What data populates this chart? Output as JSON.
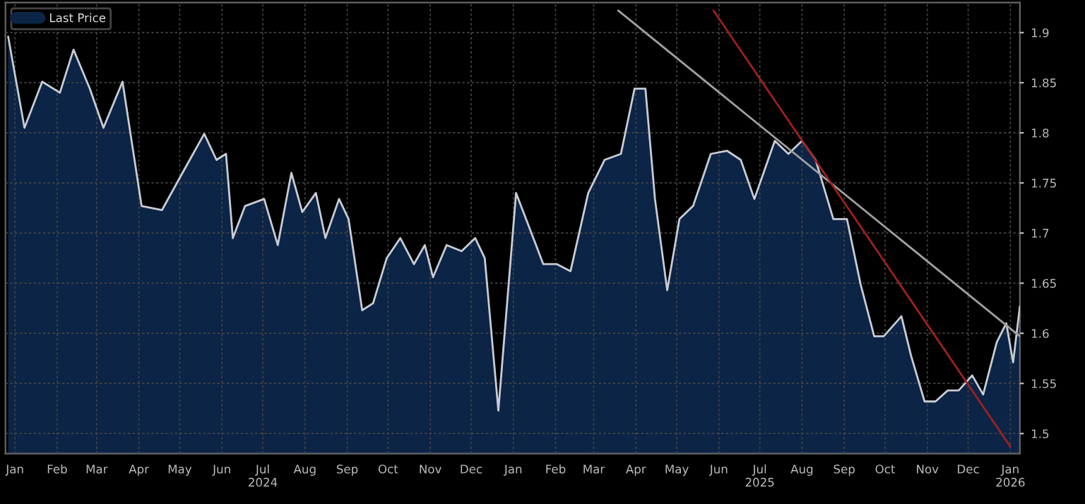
{
  "chart_data": {
    "type": "area",
    "legend": "top left",
    "grid": true,
    "xlim": [
      "2023-12-25",
      "2026-01-08"
    ],
    "ylim": [
      1.48,
      1.93
    ],
    "yticks": [
      1.5,
      1.55,
      1.6,
      1.65,
      1.7,
      1.75,
      1.8,
      1.85,
      1.9
    ],
    "xticks": [
      {
        "value": "2024-01-01",
        "label": "Jan"
      },
      {
        "value": "2024-02-01",
        "label": "Feb"
      },
      {
        "value": "2024-03-01",
        "label": "Mar"
      },
      {
        "value": "2024-04-01",
        "label": "Apr"
      },
      {
        "value": "2024-05-01",
        "label": "May"
      },
      {
        "value": "2024-06-01",
        "label": "Jun"
      },
      {
        "value": "2024-07-01",
        "label": "Jul\n2024"
      },
      {
        "value": "2024-08-01",
        "label": "Aug"
      },
      {
        "value": "2024-09-01",
        "label": "Sep"
      },
      {
        "value": "2024-10-01",
        "label": "Oct"
      },
      {
        "value": "2024-11-01",
        "label": "Nov"
      },
      {
        "value": "2024-12-01",
        "label": "Dec"
      },
      {
        "value": "2025-01-01",
        "label": "Jan"
      },
      {
        "value": "2025-02-01",
        "label": "Feb"
      },
      {
        "value": "2025-03-01",
        "label": "Mar"
      },
      {
        "value": "2025-04-01",
        "label": "Apr"
      },
      {
        "value": "2025-05-01",
        "label": "May"
      },
      {
        "value": "2025-06-01",
        "label": "Jun"
      },
      {
        "value": "2025-07-01",
        "label": "Jul\n2025"
      },
      {
        "value": "2025-08-01",
        "label": "Aug"
      },
      {
        "value": "2025-09-01",
        "label": "Sep"
      },
      {
        "value": "2025-10-01",
        "label": "Oct"
      },
      {
        "value": "2025-11-01",
        "label": "Nov"
      },
      {
        "value": "2025-12-01",
        "label": "Dec"
      },
      {
        "value": "2026-01-01",
        "label": "Jan\n2026"
      }
    ],
    "series": [
      {
        "name": "Last Price",
        "color": "#0c2446",
        "x": [
          "2023-12-27",
          "2024-01-08",
          "2024-01-21",
          "2024-02-03",
          "2024-02-13",
          "2024-02-25",
          "2024-03-06",
          "2024-03-20",
          "2024-04-03",
          "2024-04-18",
          "2024-05-03",
          "2024-05-19",
          "2024-05-28",
          "2024-06-04",
          "2024-06-09",
          "2024-06-18",
          "2024-07-02",
          "2024-07-12",
          "2024-07-22",
          "2024-07-30",
          "2024-08-09",
          "2024-08-16",
          "2024-08-26",
          "2024-09-02",
          "2024-09-12",
          "2024-09-20",
          "2024-09-30",
          "2024-10-10",
          "2024-10-20",
          "2024-10-28",
          "2024-11-03",
          "2024-11-13",
          "2024-11-24",
          "2024-12-04",
          "2024-12-11",
          "2024-12-21",
          "2025-01-03",
          "2025-01-14",
          "2025-01-23",
          "2025-02-02",
          "2025-02-12",
          "2025-02-25",
          "2025-03-09",
          "2025-03-21",
          "2025-03-31",
          "2025-04-08",
          "2025-04-15",
          "2025-04-24",
          "2025-05-03",
          "2025-05-13",
          "2025-05-26",
          "2025-06-07",
          "2025-06-17",
          "2025-06-27",
          "2025-07-12",
          "2025-07-22",
          "2025-08-01",
          "2025-08-11",
          "2025-08-24",
          "2025-09-03",
          "2025-09-13",
          "2025-09-23",
          "2025-09-30",
          "2025-10-13",
          "2025-10-20",
          "2025-10-30",
          "2025-11-07",
          "2025-11-16",
          "2025-11-24",
          "2025-12-04",
          "2025-12-12",
          "2025-12-22",
          "2025-12-29",
          "2026-01-03",
          "2026-01-08"
        ],
        "values": [
          1.896,
          1.805,
          1.851,
          1.84,
          1.883,
          1.844,
          1.805,
          1.851,
          1.727,
          1.723,
          1.76,
          1.799,
          1.773,
          1.779,
          1.695,
          1.727,
          1.734,
          1.688,
          1.76,
          1.721,
          1.74,
          1.695,
          1.734,
          1.714,
          1.623,
          1.63,
          1.675,
          1.695,
          1.669,
          1.688,
          1.656,
          1.688,
          1.682,
          1.695,
          1.675,
          1.523,
          1.74,
          1.701,
          1.669,
          1.669,
          1.662,
          1.74,
          1.773,
          1.779,
          1.844,
          1.844,
          1.734,
          1.643,
          1.714,
          1.727,
          1.779,
          1.782,
          1.773,
          1.734,
          1.792,
          1.779,
          1.792,
          1.773,
          1.714,
          1.714,
          1.649,
          1.597,
          1.597,
          1.617,
          1.578,
          1.532,
          1.532,
          1.543,
          1.543,
          1.558,
          1.539,
          1.591,
          1.61,
          1.571,
          1.627
        ]
      },
      {
        "type": "line",
        "color": "#a0a0a0",
        "x": [
          "2025-03-19",
          "2026-01-08"
        ],
        "values": [
          1.922,
          1.597
        ]
      },
      {
        "type": "line",
        "color": "#a02020",
        "x": [
          "2025-05-28",
          "2026-01-01"
        ],
        "values": [
          1.922,
          1.487
        ]
      }
    ]
  }
}
